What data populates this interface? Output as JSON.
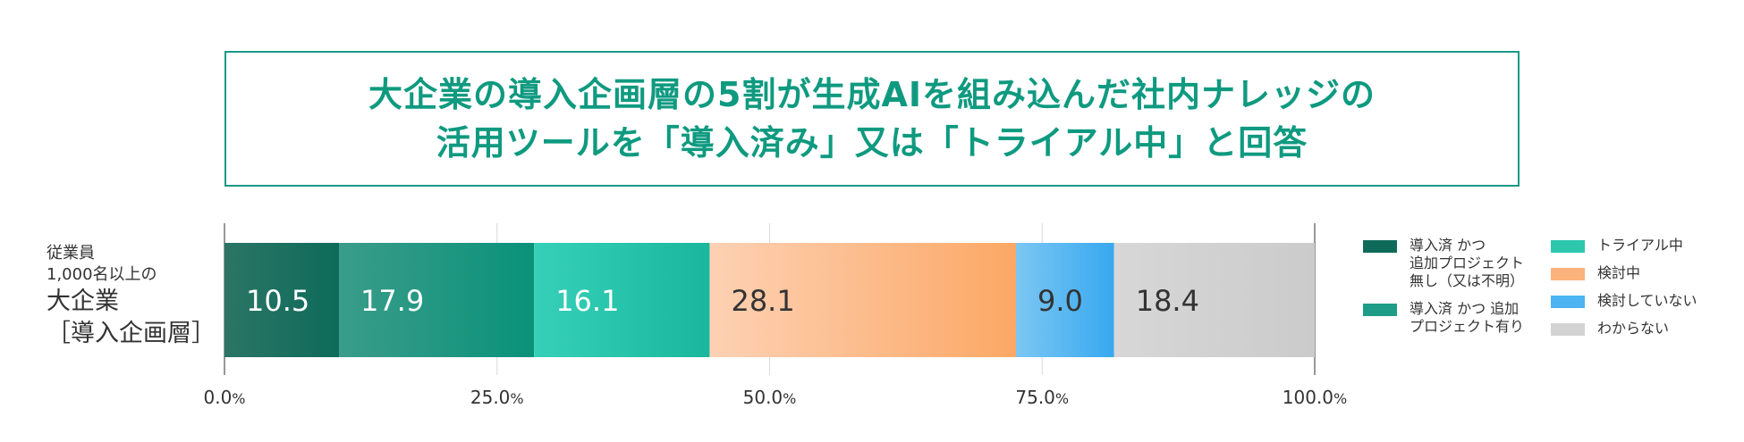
{
  "title": {
    "lines": [
      "大企業の導入企画層の5割が生成AIを組み込んだ社内ナレッジの",
      "活用ツールを「導入済み」又は「トライアル中」と回答"
    ]
  },
  "row_label": {
    "lines_small": [
      "従業員",
      "1,000名以上の"
    ],
    "lines_large": [
      "大企業",
      "［導入企画層］"
    ]
  },
  "chart_data": {
    "type": "bar",
    "orientation": "horizontal",
    "stacked": true,
    "categories": [
      "従業員1,000名以上の大企業［導入企画層］"
    ],
    "xlim": [
      0,
      100
    ],
    "x_ticks": [
      {
        "value": 0,
        "num": "0.0",
        "unit": "%"
      },
      {
        "value": 25,
        "num": "25.0",
        "unit": "%"
      },
      {
        "value": 50,
        "num": "50.0",
        "unit": "%"
      },
      {
        "value": 75,
        "num": "75.0",
        "unit": "%"
      },
      {
        "value": 100,
        "num": "100.0",
        "unit": "%"
      }
    ],
    "grid": true,
    "legend_placement": "right",
    "series": [
      {
        "name": "導入済 かつ 追加プロジェクト無し（又は不明）",
        "values": [
          10.5
        ],
        "label": "10.5",
        "color_start": "#2b7566",
        "color_end": "#0e6b5a",
        "label_color": "#ffffff"
      },
      {
        "name": "導入済 かつ 追加プロジェクト有り",
        "values": [
          17.9
        ],
        "label": "17.9",
        "color_start": "#3a9c8a",
        "color_end": "#0a9279",
        "label_color": "#ffffff"
      },
      {
        "name": "トライアル中",
        "values": [
          16.1
        ],
        "label": "16.1",
        "color_start": "#36d0b8",
        "color_end": "#19b79d",
        "label_color": "#ffffff"
      },
      {
        "name": "検討中",
        "values": [
          28.1
        ],
        "label": "28.1",
        "color_start": "#fdd1b4",
        "color_end": "#fca865",
        "label_color": "#333333"
      },
      {
        "name": "検討していない",
        "values": [
          9.0
        ],
        "label": "9.0",
        "color_start": "#7cc7f3",
        "color_end": "#37a8ef",
        "label_color": "#333333"
      },
      {
        "name": "わからない",
        "values": [
          18.4
        ],
        "label": "18.4",
        "color_start": "#d7d7d7",
        "color_end": "#cbcbcb",
        "label_color": "#333333"
      }
    ]
  },
  "legend": {
    "col1": [
      {
        "lines": [
          "導入済 かつ",
          "追加プロジェクト",
          "無し（又は不明）"
        ],
        "color": "#0e6b5a"
      },
      {
        "lines": [
          "導入済 かつ 追加",
          "プロジェクト有り"
        ],
        "color": "#1d9c86"
      }
    ],
    "col2": [
      {
        "lines": [
          "トライアル中"
        ],
        "color": "#2cc7ad"
      },
      {
        "lines": [
          "検討中"
        ],
        "color": "#fcb27c"
      },
      {
        "lines": [
          "検討していない"
        ],
        "color": "#4cb4f0"
      },
      {
        "lines": [
          "わからない"
        ],
        "color": "#d3d3d3"
      }
    ]
  }
}
